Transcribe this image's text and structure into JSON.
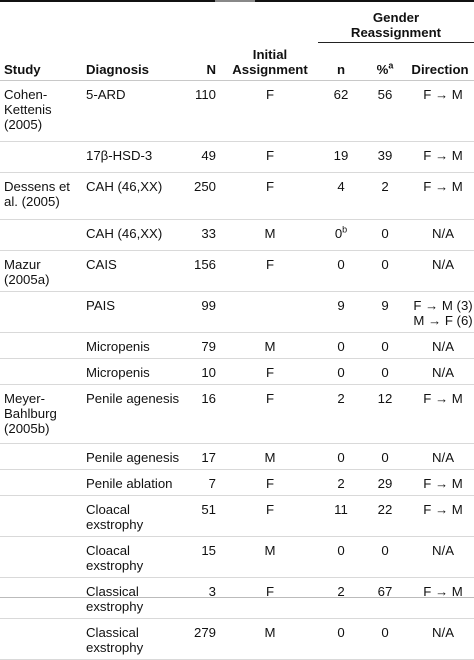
{
  "header": {
    "study": "Study",
    "diagnosis": "Diagnosis",
    "n": "N",
    "initial_line1": "Initial",
    "initial_line2": "Assignment",
    "group_line1": "Gender",
    "group_line2": "Reassignment",
    "gn": "n",
    "pct": "%",
    "pct_sup": "a",
    "direction": "Direction"
  },
  "rows": [
    {
      "study": "Cohen-Kettenis (2005)",
      "diagnosis": "5-ARD",
      "n": "110",
      "initial": "F",
      "reassign_n": "62",
      "reassign_n_sup": "",
      "pct": "56",
      "direction": "F → M"
    },
    {
      "study": "",
      "diagnosis": "17β-HSD-3",
      "n": "49",
      "initial": "F",
      "reassign_n": "19",
      "reassign_n_sup": "",
      "pct": "39",
      "direction": "F → M"
    },
    {
      "study": "Dessens et al. (2005)",
      "diagnosis": "CAH (46,XX)",
      "n": "250",
      "initial": "F",
      "reassign_n": "4",
      "reassign_n_sup": "",
      "pct": "2",
      "direction": "F → M"
    },
    {
      "study": "",
      "diagnosis": "CAH (46,XX)",
      "n": "33",
      "initial": "M",
      "reassign_n": "0",
      "reassign_n_sup": "b",
      "pct": "0",
      "direction": "N/A"
    },
    {
      "study": "Mazur (2005a)",
      "diagnosis": "CAIS",
      "n": "156",
      "initial": "F",
      "reassign_n": "0",
      "reassign_n_sup": "",
      "pct": "0",
      "direction": "N/A"
    },
    {
      "study": "",
      "diagnosis": "PAIS",
      "n": "99",
      "initial": "",
      "reassign_n": "9",
      "reassign_n_sup": "",
      "pct": "9",
      "direction": "F → M (3)",
      "direction2": "M → F (6)"
    },
    {
      "study": "",
      "diagnosis": "Micropenis",
      "n": "79",
      "initial": "M",
      "reassign_n": "0",
      "reassign_n_sup": "",
      "pct": "0",
      "direction": "N/A"
    },
    {
      "study": "",
      "diagnosis": "Micropenis",
      "n": "10",
      "initial": "F",
      "reassign_n": "0",
      "reassign_n_sup": "",
      "pct": "0",
      "direction": "N/A"
    },
    {
      "study": "Meyer-Bahlburg (2005b)",
      "diagnosis": "Penile agenesis",
      "n": "16",
      "initial": "F",
      "reassign_n": "2",
      "reassign_n_sup": "",
      "pct": "12",
      "direction": "F → M"
    },
    {
      "study": "",
      "diagnosis": "Penile agenesis",
      "n": "17",
      "initial": "M",
      "reassign_n": "0",
      "reassign_n_sup": "",
      "pct": "0",
      "direction": "N/A"
    },
    {
      "study": "",
      "diagnosis": "Penile ablation",
      "n": "7",
      "initial": "F",
      "reassign_n": "2",
      "reassign_n_sup": "",
      "pct": "29",
      "direction": "F → M"
    },
    {
      "study": "",
      "diagnosis": "Cloacal exstrophy",
      "n": "51",
      "initial": "F",
      "reassign_n": "11",
      "reassign_n_sup": "",
      "pct": "22",
      "direction": "F → M"
    },
    {
      "study": "",
      "diagnosis": "Cloacal exstrophy",
      "n": "15",
      "initial": "M",
      "reassign_n": "0",
      "reassign_n_sup": "",
      "pct": "0",
      "direction": "N/A"
    },
    {
      "study": "",
      "diagnosis": "Classical exstrophy",
      "n": "3",
      "initial": "F",
      "reassign_n": "2",
      "reassign_n_sup": "",
      "pct": "67",
      "direction": "F → M"
    },
    {
      "study": "",
      "diagnosis": "Classical exstrophy",
      "n": "279",
      "initial": "M",
      "reassign_n": "0",
      "reassign_n_sup": "",
      "pct": "0",
      "direction": "N/A"
    }
  ]
}
